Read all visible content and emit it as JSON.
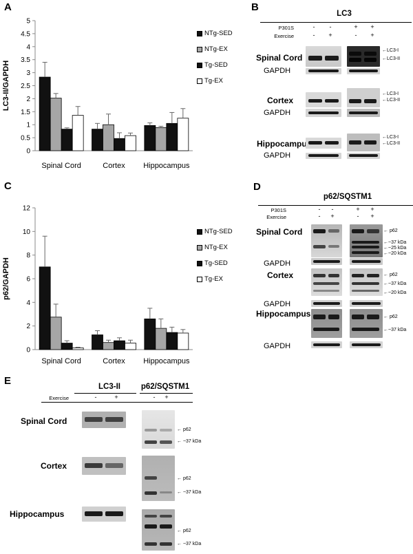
{
  "panels": {
    "A": "A",
    "B": "B",
    "C": "C",
    "D": "D",
    "E": "E"
  },
  "legend_colors": {
    "NTg-SED": "#111111",
    "NTg-EX": "#a6a6a6",
    "Tg-SED": "#111111",
    "Tg-EX": "#ffffff"
  },
  "chart_data": [
    {
      "type": "bar",
      "panel": "A",
      "ylabel": "LC3-II/GAPDH",
      "ylim": [
        0,
        5
      ],
      "yticks": [
        "0",
        "0.5",
        "1",
        "1.5",
        "2",
        "2.5",
        "3",
        "3.5",
        "4",
        "4.5",
        "5"
      ],
      "categories": [
        "Spinal Cord",
        "Cortex",
        "Hippocampus"
      ],
      "series": [
        {
          "name": "NTg-SED",
          "values": [
            2.83,
            0.83,
            0.97
          ],
          "errors": [
            0.57,
            0.22,
            0.1
          ]
        },
        {
          "name": "NTg-EX",
          "values": [
            2.02,
            1.0,
            0.89
          ],
          "errors": [
            0.18,
            0.41,
            0.05
          ]
        },
        {
          "name": "Tg-SED",
          "values": [
            0.83,
            0.47,
            1.05
          ],
          "errors": [
            0.05,
            0.22,
            0.42
          ]
        },
        {
          "name": "Tg-EX",
          "values": [
            1.36,
            0.58,
            1.25
          ],
          "errors": [
            0.34,
            0.1,
            0.37
          ]
        }
      ],
      "grid": false,
      "legend": "right"
    },
    {
      "type": "bar",
      "panel": "C",
      "ylabel": "p62/GAPDH",
      "ylim": [
        0,
        12
      ],
      "yticks": [
        "0",
        "2",
        "4",
        "6",
        "8",
        "10",
        "12"
      ],
      "categories": [
        "Spinal Cord",
        "Cortex",
        "Hippocampus"
      ],
      "series": [
        {
          "name": "NTg-SED",
          "values": [
            7.0,
            1.25,
            2.6
          ],
          "errors": [
            2.6,
            0.35,
            0.9
          ]
        },
        {
          "name": "NTg-EX",
          "values": [
            2.75,
            0.6,
            1.8
          ],
          "errors": [
            1.1,
            0.2,
            0.8
          ]
        },
        {
          "name": "Tg-SED",
          "values": [
            0.55,
            0.75,
            1.45
          ],
          "errors": [
            0.2,
            0.25,
            0.45
          ]
        },
        {
          "name": "Tg-EX",
          "values": [
            0.15,
            0.55,
            1.4
          ],
          "errors": [
            0.05,
            0.25,
            0.3
          ]
        }
      ],
      "grid": false,
      "legend": "right"
    }
  ],
  "blotB": {
    "title": "LC3",
    "row1_label": "P301S",
    "row2_label": "Exercise",
    "row1_signs": [
      "-",
      "-",
      "+",
      "+"
    ],
    "row2_signs": [
      "-",
      "+",
      "-",
      "+"
    ],
    "tissues": [
      "Spinal Cord",
      "Cortex",
      "Hippocampus"
    ],
    "gapdh": "GAPDH",
    "lc3_i": "LC3-I",
    "lc3_ii": "LC3-II"
  },
  "blotD": {
    "title": "p62/SQSTM1",
    "row1_label": "P301S",
    "row2_label": "Exercise",
    "row1_signs": [
      "-",
      "-",
      "+",
      "+"
    ],
    "row2_signs": [
      "-",
      "+",
      "-",
      "+"
    ],
    "tissues": [
      "Spinal Cord",
      "Cortex",
      "Hippocampus"
    ],
    "gapdh": "GAPDH",
    "p62": "p62",
    "kda37": "~37 kDa",
    "kda25": "~25 kDa",
    "kda20": "~20 kDa"
  },
  "blotE": {
    "title_lc3": "LC3-II",
    "title_p62": "p62/SQSTM1",
    "exercise_label": "Exercise",
    "signs": [
      "-",
      "+",
      "-",
      "+"
    ],
    "tissues": [
      "Spinal Cord",
      "Cortex",
      "Hippocampus"
    ],
    "p62": "p62",
    "kda37": "~37 kDa"
  }
}
